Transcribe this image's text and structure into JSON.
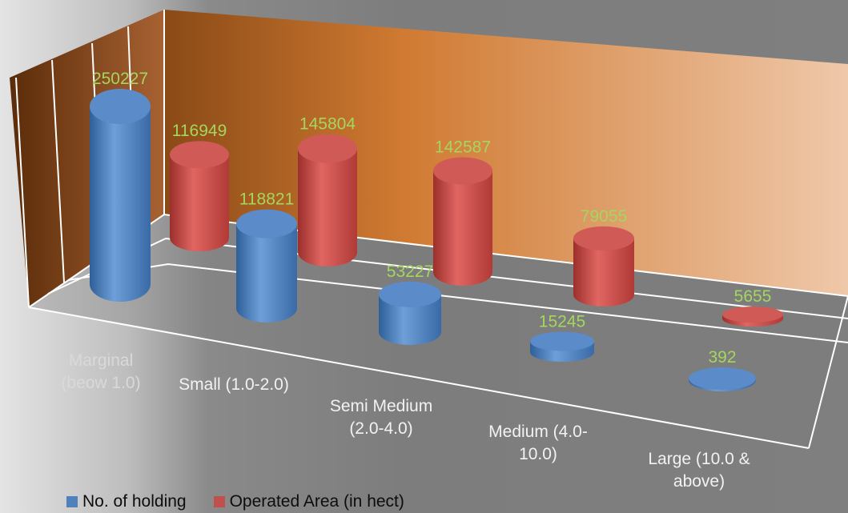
{
  "chart_data": {
    "type": "bar",
    "style": "3d-cylinder",
    "categories": [
      [
        "Marginal",
        "(beow  1.0)"
      ],
      [
        "Small (1.0-2.0)"
      ],
      [
        "Semi Medium",
        "(2.0-4.0)"
      ],
      [
        "Medium (4.0-",
        "10.0)"
      ],
      [
        "Large (10.0 &",
        "above)"
      ]
    ],
    "series": [
      {
        "name": "No. of holding",
        "color": "#4f81bd",
        "values": [
          250227,
          118821,
          53227,
          15245,
          392
        ]
      },
      {
        "name": "Operated Area (in hect)",
        "color": "#c0504d",
        "values": [
          116949,
          145804,
          142587,
          79055,
          5655
        ]
      }
    ],
    "title": "",
    "xlabel": "",
    "ylabel": "",
    "gridlines": true,
    "legend_position": "bottom",
    "data_labels": true,
    "data_label_color": "#a4d65e",
    "category_label_colors": [
      "#d9d9d9",
      "#f2f2f2",
      "#f2f2f2",
      "#f2f2f2",
      "#f2f2f2"
    ]
  }
}
